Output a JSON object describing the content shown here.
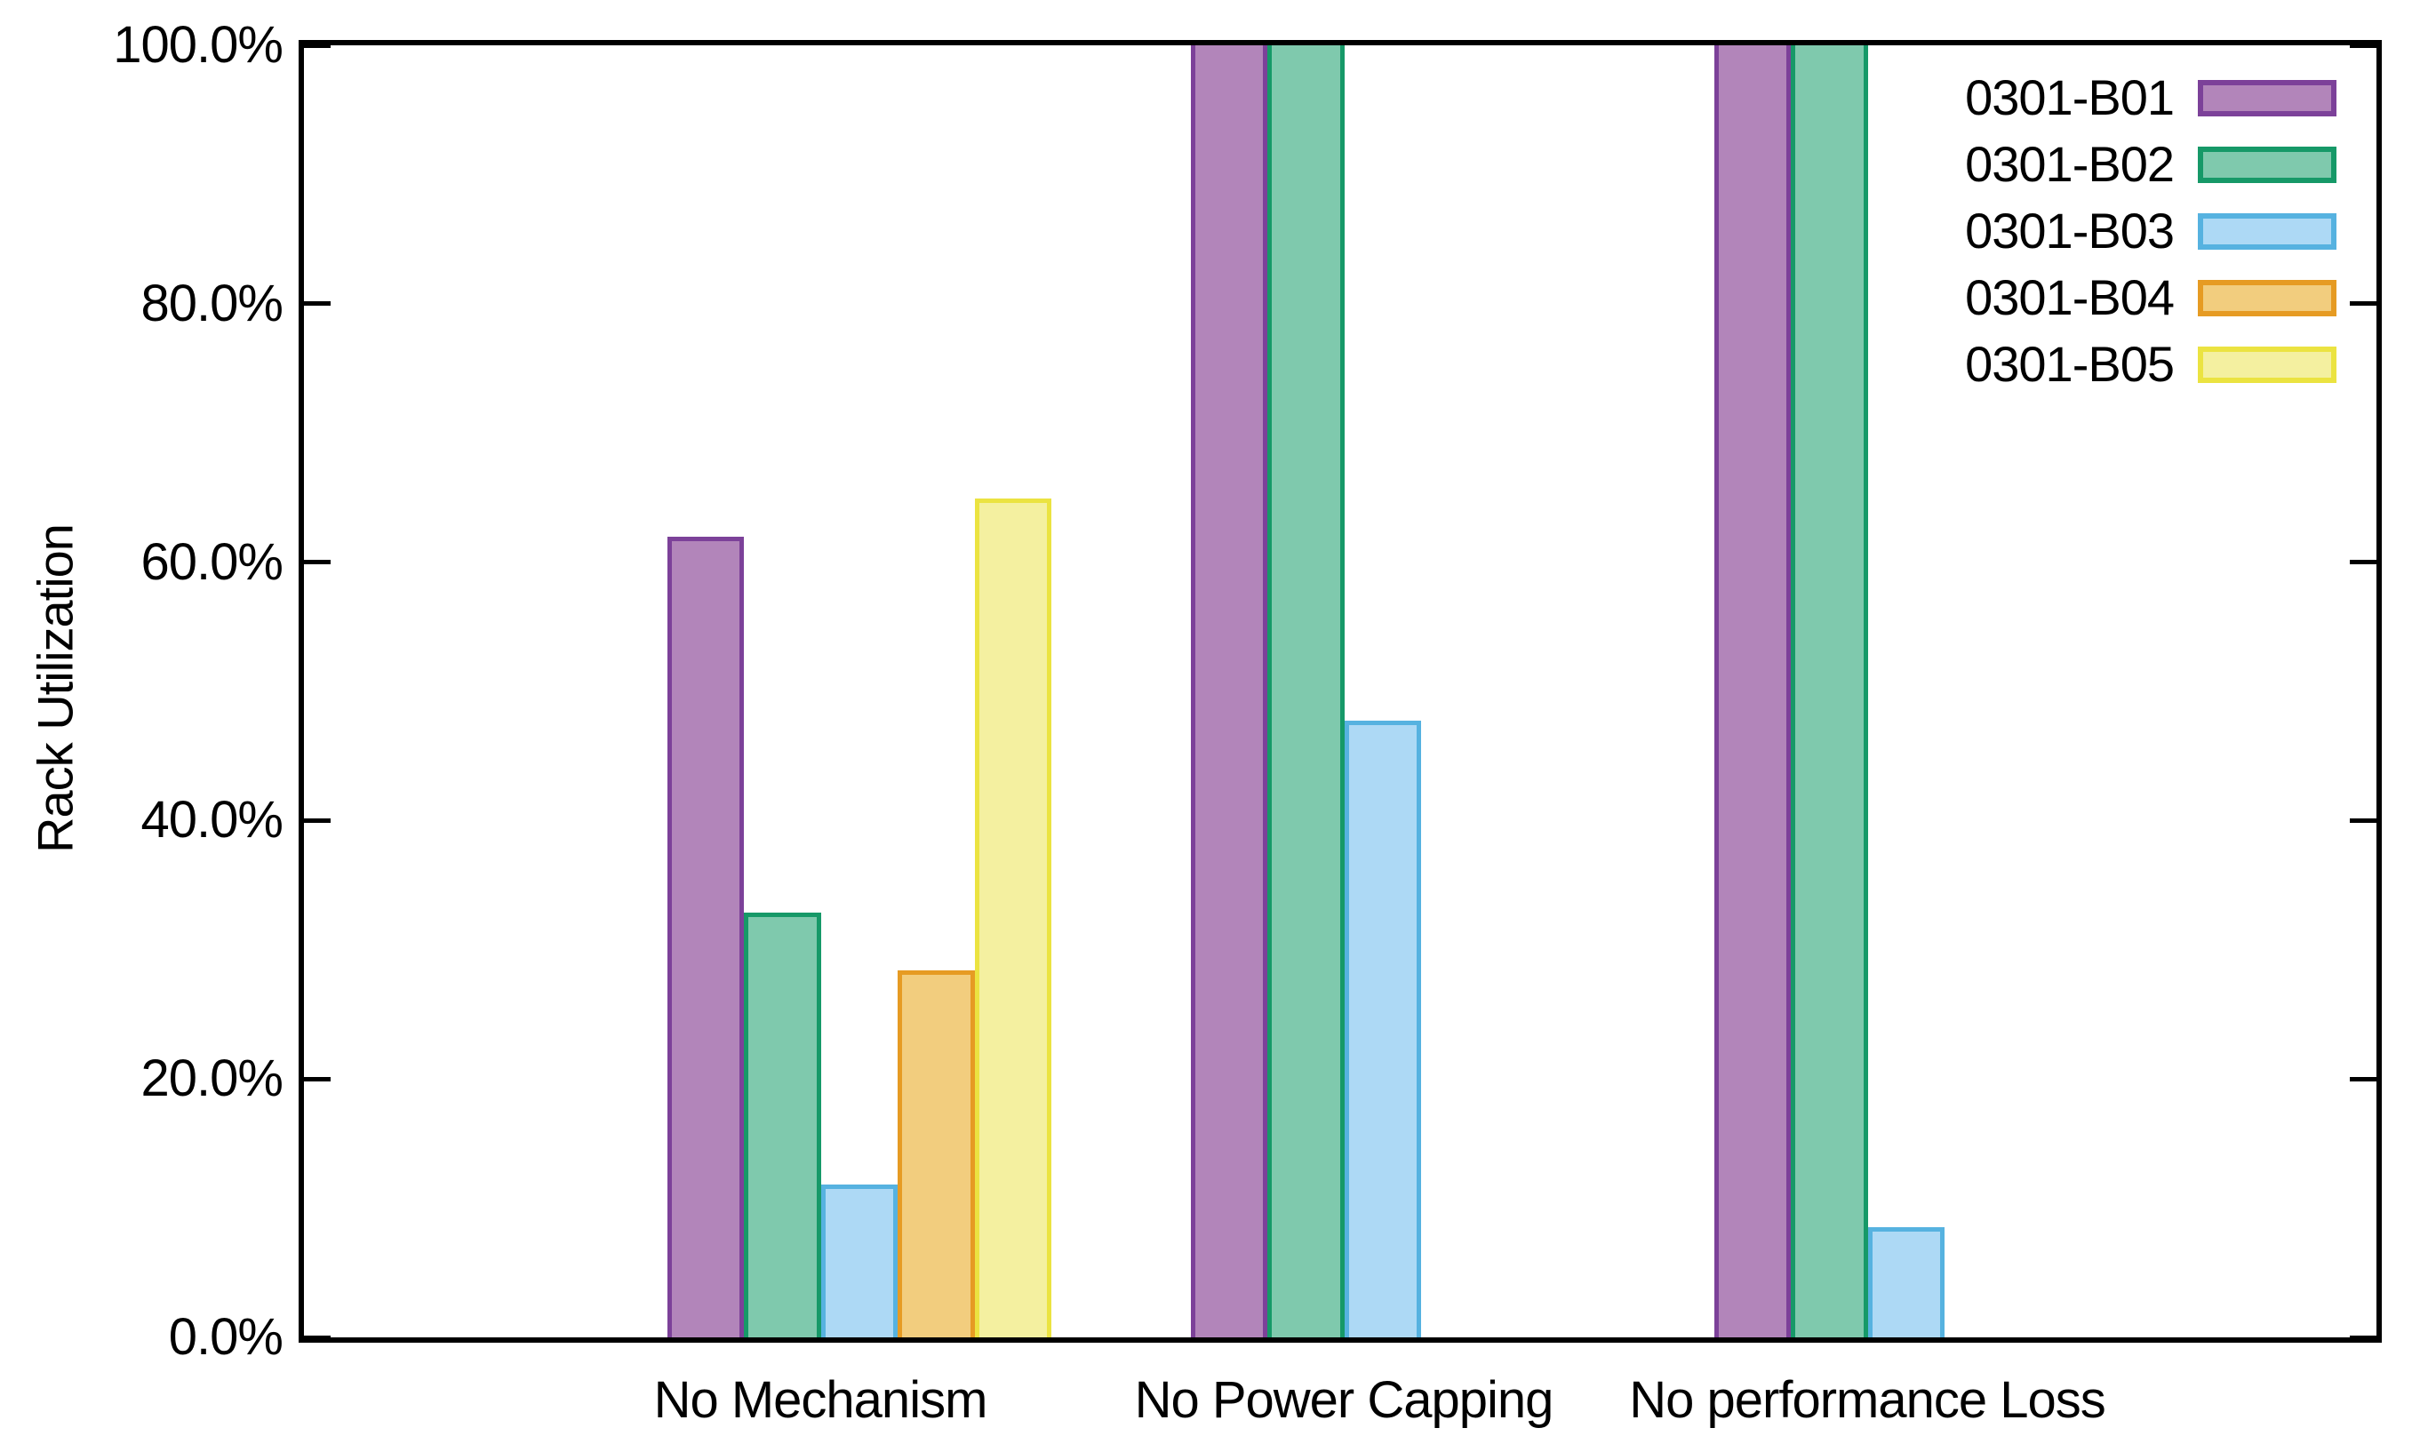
{
  "chart_data": {
    "type": "bar",
    "title": "",
    "xlabel": "",
    "ylabel": "Rack Utilization",
    "ylim": [
      0,
      100
    ],
    "grid": false,
    "legend_position": "top-right-inside",
    "value_format": "percent",
    "ytick_labels": [
      {
        "value": 0,
        "label": "0.0%"
      },
      {
        "value": 20,
        "label": "20.0%"
      },
      {
        "value": 40,
        "label": "40.0%"
      },
      {
        "value": 60,
        "label": "60.0%"
      },
      {
        "value": 80,
        "label": "80.0%"
      },
      {
        "value": 100,
        "label": "100.0%"
      }
    ],
    "categories": [
      "No Mechanism",
      "No Power Capping",
      "No performance Loss"
    ],
    "series": [
      {
        "name": "0301-B01",
        "fill": "#b285ba",
        "border": "#7c4199",
        "values": [
          62.0,
          100.0,
          100.0
        ]
      },
      {
        "name": "0301-B02",
        "fill": "#7fc9ad",
        "border": "#169968",
        "values": [
          32.9,
          100.0,
          100.0
        ]
      },
      {
        "name": "0301-B03",
        "fill": "#add9f5",
        "border": "#56b2e0",
        "values": [
          11.8,
          47.7,
          8.5
        ]
      },
      {
        "name": "0301-B04",
        "fill": "#f2cd7e",
        "border": "#e69b23",
        "values": [
          28.4,
          0.0,
          0.0
        ]
      },
      {
        "name": "0301-B05",
        "fill": "#f4f0a0",
        "border": "#ebe341",
        "values": [
          64.9,
          0.0,
          0.0
        ]
      }
    ]
  },
  "colors": {
    "axis": "#000000",
    "background": "#ffffff",
    "text": "#000000"
  }
}
